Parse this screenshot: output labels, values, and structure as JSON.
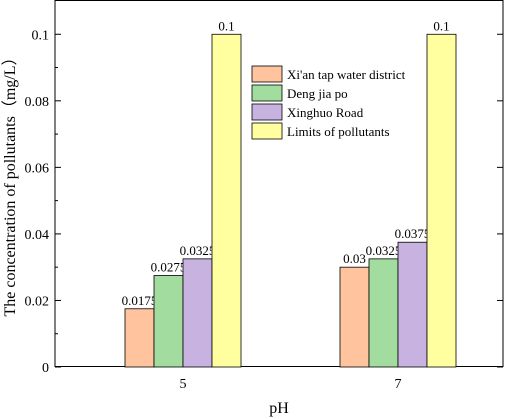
{
  "chart_data": {
    "type": "bar",
    "xlabel": "pH",
    "ylabel": "The concentration of pollutants（mg/L）",
    "categories": [
      "5",
      "7"
    ],
    "ylim": [
      0,
      0.11
    ],
    "yticks": [
      "0",
      "0.02",
      "0.04",
      "0.06",
      "0.08",
      "0.1"
    ],
    "grid": false,
    "legend_position": "top-right",
    "series": [
      {
        "name": "Xi'an tap water district",
        "values": [
          0.0175,
          0.03
        ],
        "labels": [
          "0.0175",
          "0.03"
        ],
        "color": "#FFC49E"
      },
      {
        "name": "Deng jia po",
        "values": [
          0.0275,
          0.0325
        ],
        "labels": [
          "0.0275",
          "0.0325"
        ],
        "color": "#A2DC9F"
      },
      {
        "name": "Xinghuo Road",
        "values": [
          0.0325,
          0.0375
        ],
        "labels": [
          "0.0325",
          "0.0375"
        ],
        "color": "#C8B3E0"
      },
      {
        "name": "Limits of pollutants",
        "values": [
          0.1,
          0.1
        ],
        "labels": [
          "0.1",
          "0.1"
        ],
        "color": "#FFFFA0"
      }
    ]
  }
}
